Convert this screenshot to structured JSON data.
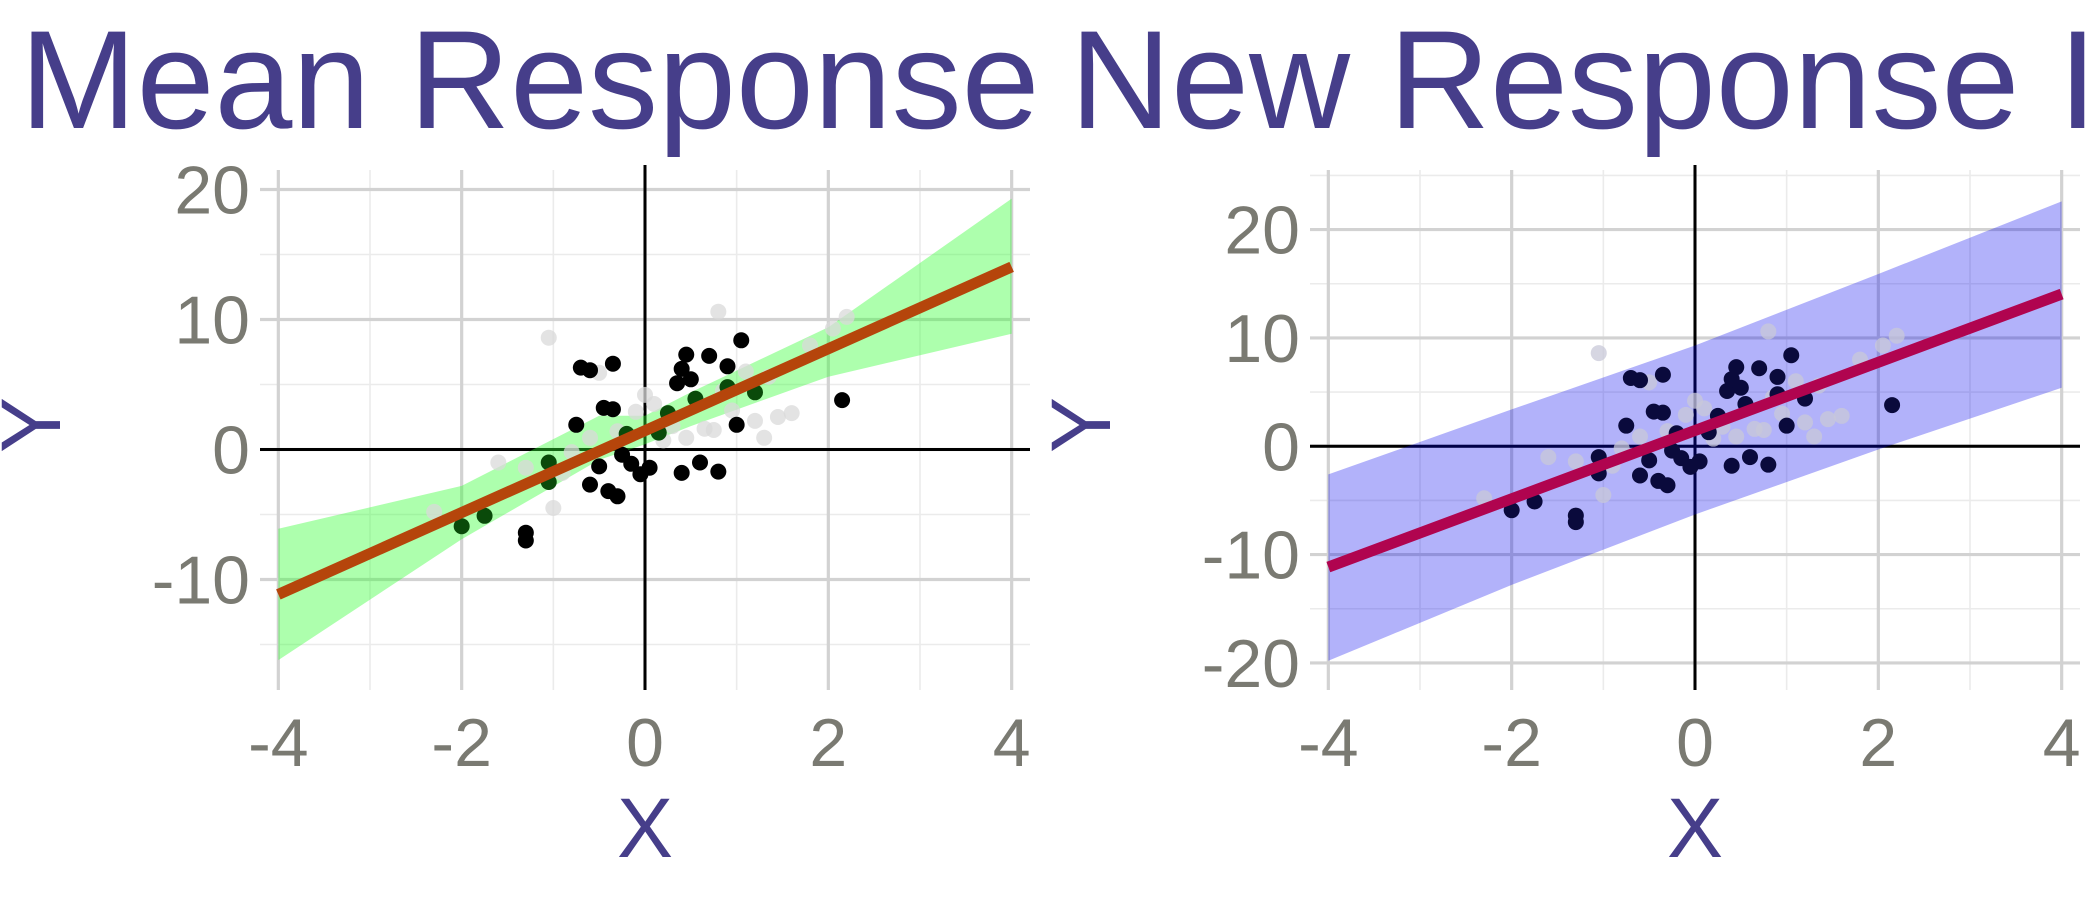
{
  "chart_data": [
    {
      "type": "scatter",
      "title": "Mean Response",
      "xlabel": "X",
      "ylabel": "Y",
      "xlim": [
        -4.2,
        4.2
      ],
      "ylim": [
        -18.5,
        21.5
      ],
      "x_ticks": [
        -4,
        -2,
        0,
        2,
        4
      ],
      "x_tick_labels": [
        "-4",
        "-2",
        "0",
        "2",
        "4"
      ],
      "y_ticks": [
        -10,
        0,
        10,
        20
      ],
      "y_tick_labels": [
        "-10",
        "0",
        "10",
        "20"
      ],
      "grid": true,
      "band_kind": "confidence",
      "fit_line": {
        "intercept": 1.45,
        "slope": 3.15,
        "x_range": [
          -4,
          4
        ]
      },
      "band": [
        {
          "x": -4,
          "lower": -16.2,
          "upper": -6.1
        },
        {
          "x": -2,
          "lower": -6.9,
          "upper": -2.8
        },
        {
          "x": -0.5,
          "lower": -0.8,
          "upper": 2.6
        },
        {
          "x": 0,
          "lower": 0.4,
          "upper": 2.6
        },
        {
          "x": 0.5,
          "lower": 1.8,
          "upper": 4.4
        },
        {
          "x": 2,
          "lower": 5.6,
          "upper": 9.4
        },
        {
          "x": 4,
          "lower": 8.9,
          "upper": 19.3
        }
      ],
      "points_highlight": [
        [
          -2.0,
          -5.9
        ],
        [
          -1.75,
          -5.1
        ],
        [
          -1.3,
          -6.4
        ],
        [
          -1.3,
          -7.0
        ],
        [
          -1.05,
          -1.0
        ],
        [
          -1.05,
          -2.5
        ],
        [
          -0.75,
          1.9
        ],
        [
          -0.7,
          6.3
        ],
        [
          -0.6,
          6.1
        ],
        [
          -0.6,
          -2.7
        ],
        [
          -0.5,
          -1.3
        ],
        [
          -0.45,
          3.2
        ],
        [
          -0.4,
          -3.2
        ],
        [
          -0.35,
          6.6
        ],
        [
          -0.35,
          3.1
        ],
        [
          -0.3,
          -3.6
        ],
        [
          -0.25,
          -0.4
        ],
        [
          -0.2,
          1.2
        ],
        [
          -0.15,
          -1.1
        ],
        [
          -0.05,
          -1.9
        ],
        [
          0.05,
          -1.4
        ],
        [
          0.15,
          1.3
        ],
        [
          0.25,
          2.8
        ],
        [
          0.35,
          5.1
        ],
        [
          0.4,
          6.2
        ],
        [
          0.4,
          -1.8
        ],
        [
          0.45,
          7.3
        ],
        [
          0.5,
          5.4
        ],
        [
          0.55,
          3.9
        ],
        [
          0.6,
          -1.0
        ],
        [
          0.7,
          7.2
        ],
        [
          0.8,
          -1.7
        ],
        [
          0.9,
          4.8
        ],
        [
          0.9,
          6.4
        ],
        [
          1.0,
          1.9
        ],
        [
          1.05,
          8.4
        ],
        [
          1.2,
          4.4
        ],
        [
          2.15,
          3.8
        ]
      ],
      "points_faded": [
        [
          -2.3,
          -4.8
        ],
        [
          -1.6,
          -1.0
        ],
        [
          -1.3,
          -1.4
        ],
        [
          -1.05,
          8.6
        ],
        [
          -1.0,
          -4.5
        ],
        [
          -0.9,
          -1.8
        ],
        [
          -0.8,
          -0.2
        ],
        [
          -0.6,
          0.9
        ],
        [
          -0.5,
          5.9
        ],
        [
          -0.3,
          1.4
        ],
        [
          -0.1,
          2.9
        ],
        [
          0.0,
          4.2
        ],
        [
          0.1,
          3.5
        ],
        [
          0.2,
          0.7
        ],
        [
          0.3,
          1.8
        ],
        [
          0.45,
          0.9
        ],
        [
          0.65,
          1.6
        ],
        [
          0.75,
          1.5
        ],
        [
          0.8,
          10.6
        ],
        [
          0.85,
          4.5
        ],
        [
          0.95,
          3.0
        ],
        [
          1.1,
          6.0
        ],
        [
          1.2,
          2.2
        ],
        [
          1.3,
          0.9
        ],
        [
          1.45,
          2.5
        ],
        [
          1.6,
          2.8
        ],
        [
          1.8,
          8.0
        ],
        [
          2.05,
          9.3
        ],
        [
          2.2,
          10.2
        ],
        [
          1.35,
          5.6
        ]
      ],
      "colors": {
        "band": "#33ff33",
        "band_opacity": 0.4,
        "fit_line": "#B5450B",
        "points_highlight": "#000000",
        "points_highlight_inside": "#0a4a0a",
        "points_faded": "#d9d9d9"
      }
    },
    {
      "type": "scatter",
      "title": "New Response Interval",
      "xlabel": "X",
      "ylabel": "Y",
      "xlim": [
        -4.2,
        4.2
      ],
      "ylim": [
        -22.5,
        25.5
      ],
      "x_ticks": [
        -4,
        -2,
        0,
        2,
        4
      ],
      "x_tick_labels": [
        "-4",
        "-2",
        "0",
        "2",
        "4"
      ],
      "y_ticks": [
        -20,
        -10,
        0,
        10,
        20
      ],
      "y_tick_labels": [
        "-20",
        "-10",
        "0",
        "10",
        "20"
      ],
      "grid": true,
      "band_kind": "prediction",
      "fit_line": {
        "intercept": 1.45,
        "slope": 3.15,
        "x_range": [
          -4,
          4
        ]
      },
      "band": [
        {
          "x": -4,
          "lower": -19.8,
          "upper": -2.6
        },
        {
          "x": -2,
          "lower": -12.8,
          "upper": 3.4
        },
        {
          "x": 0,
          "lower": -6.3,
          "upper": 9.3
        },
        {
          "x": 2,
          "lower": -0.3,
          "upper": 15.9
        },
        {
          "x": 4,
          "lower": 5.4,
          "upper": 22.6
        }
      ],
      "points_highlight": [
        [
          -2.0,
          -5.9
        ],
        [
          -1.75,
          -5.1
        ],
        [
          -1.3,
          -6.4
        ],
        [
          -1.3,
          -7.0
        ],
        [
          -1.05,
          -1.0
        ],
        [
          -1.05,
          -2.5
        ],
        [
          -0.75,
          1.9
        ],
        [
          -0.7,
          6.3
        ],
        [
          -0.6,
          6.1
        ],
        [
          -0.6,
          -2.7
        ],
        [
          -0.5,
          -1.3
        ],
        [
          -0.45,
          3.2
        ],
        [
          -0.4,
          -3.2
        ],
        [
          -0.35,
          6.6
        ],
        [
          -0.35,
          3.1
        ],
        [
          -0.3,
          -3.6
        ],
        [
          -0.25,
          -0.4
        ],
        [
          -0.2,
          1.2
        ],
        [
          -0.15,
          -1.1
        ],
        [
          -0.05,
          -1.9
        ],
        [
          0.05,
          -1.4
        ],
        [
          0.15,
          1.3
        ],
        [
          0.25,
          2.8
        ],
        [
          0.35,
          5.1
        ],
        [
          0.4,
          6.2
        ],
        [
          0.4,
          -1.8
        ],
        [
          0.45,
          7.3
        ],
        [
          0.5,
          5.4
        ],
        [
          0.55,
          3.9
        ],
        [
          0.6,
          -1.0
        ],
        [
          0.7,
          7.2
        ],
        [
          0.8,
          -1.7
        ],
        [
          0.9,
          4.8
        ],
        [
          0.9,
          6.4
        ],
        [
          1.0,
          1.9
        ],
        [
          1.05,
          8.4
        ],
        [
          1.2,
          4.4
        ],
        [
          2.15,
          3.8
        ]
      ],
      "points_faded": [
        [
          -2.3,
          -4.8
        ],
        [
          -1.6,
          -1.0
        ],
        [
          -1.3,
          -1.4
        ],
        [
          -1.05,
          8.6
        ],
        [
          -1.0,
          -4.5
        ],
        [
          -0.9,
          -1.8
        ],
        [
          -0.8,
          -0.2
        ],
        [
          -0.6,
          0.9
        ],
        [
          -0.5,
          5.9
        ],
        [
          -0.3,
          1.4
        ],
        [
          -0.1,
          2.9
        ],
        [
          0.0,
          4.2
        ],
        [
          0.1,
          3.5
        ],
        [
          0.2,
          0.7
        ],
        [
          0.3,
          1.8
        ],
        [
          0.45,
          0.9
        ],
        [
          0.65,
          1.6
        ],
        [
          0.75,
          1.5
        ],
        [
          0.8,
          10.6
        ],
        [
          0.85,
          4.5
        ],
        [
          0.95,
          3.0
        ],
        [
          1.1,
          6.0
        ],
        [
          1.2,
          2.2
        ],
        [
          1.3,
          0.9
        ],
        [
          1.45,
          2.5
        ],
        [
          1.6,
          2.8
        ],
        [
          1.8,
          8.0
        ],
        [
          2.05,
          9.3
        ],
        [
          2.2,
          10.2
        ],
        [
          1.35,
          5.6
        ]
      ],
      "colors": {
        "band": "#0000ee",
        "band_opacity": 0.3,
        "fit_line": "#B0044F",
        "points_highlight": "#0a0a3c",
        "points_highlight_inside": "#0a0a3c",
        "points_faded": "#c8c8d8"
      }
    }
  ]
}
